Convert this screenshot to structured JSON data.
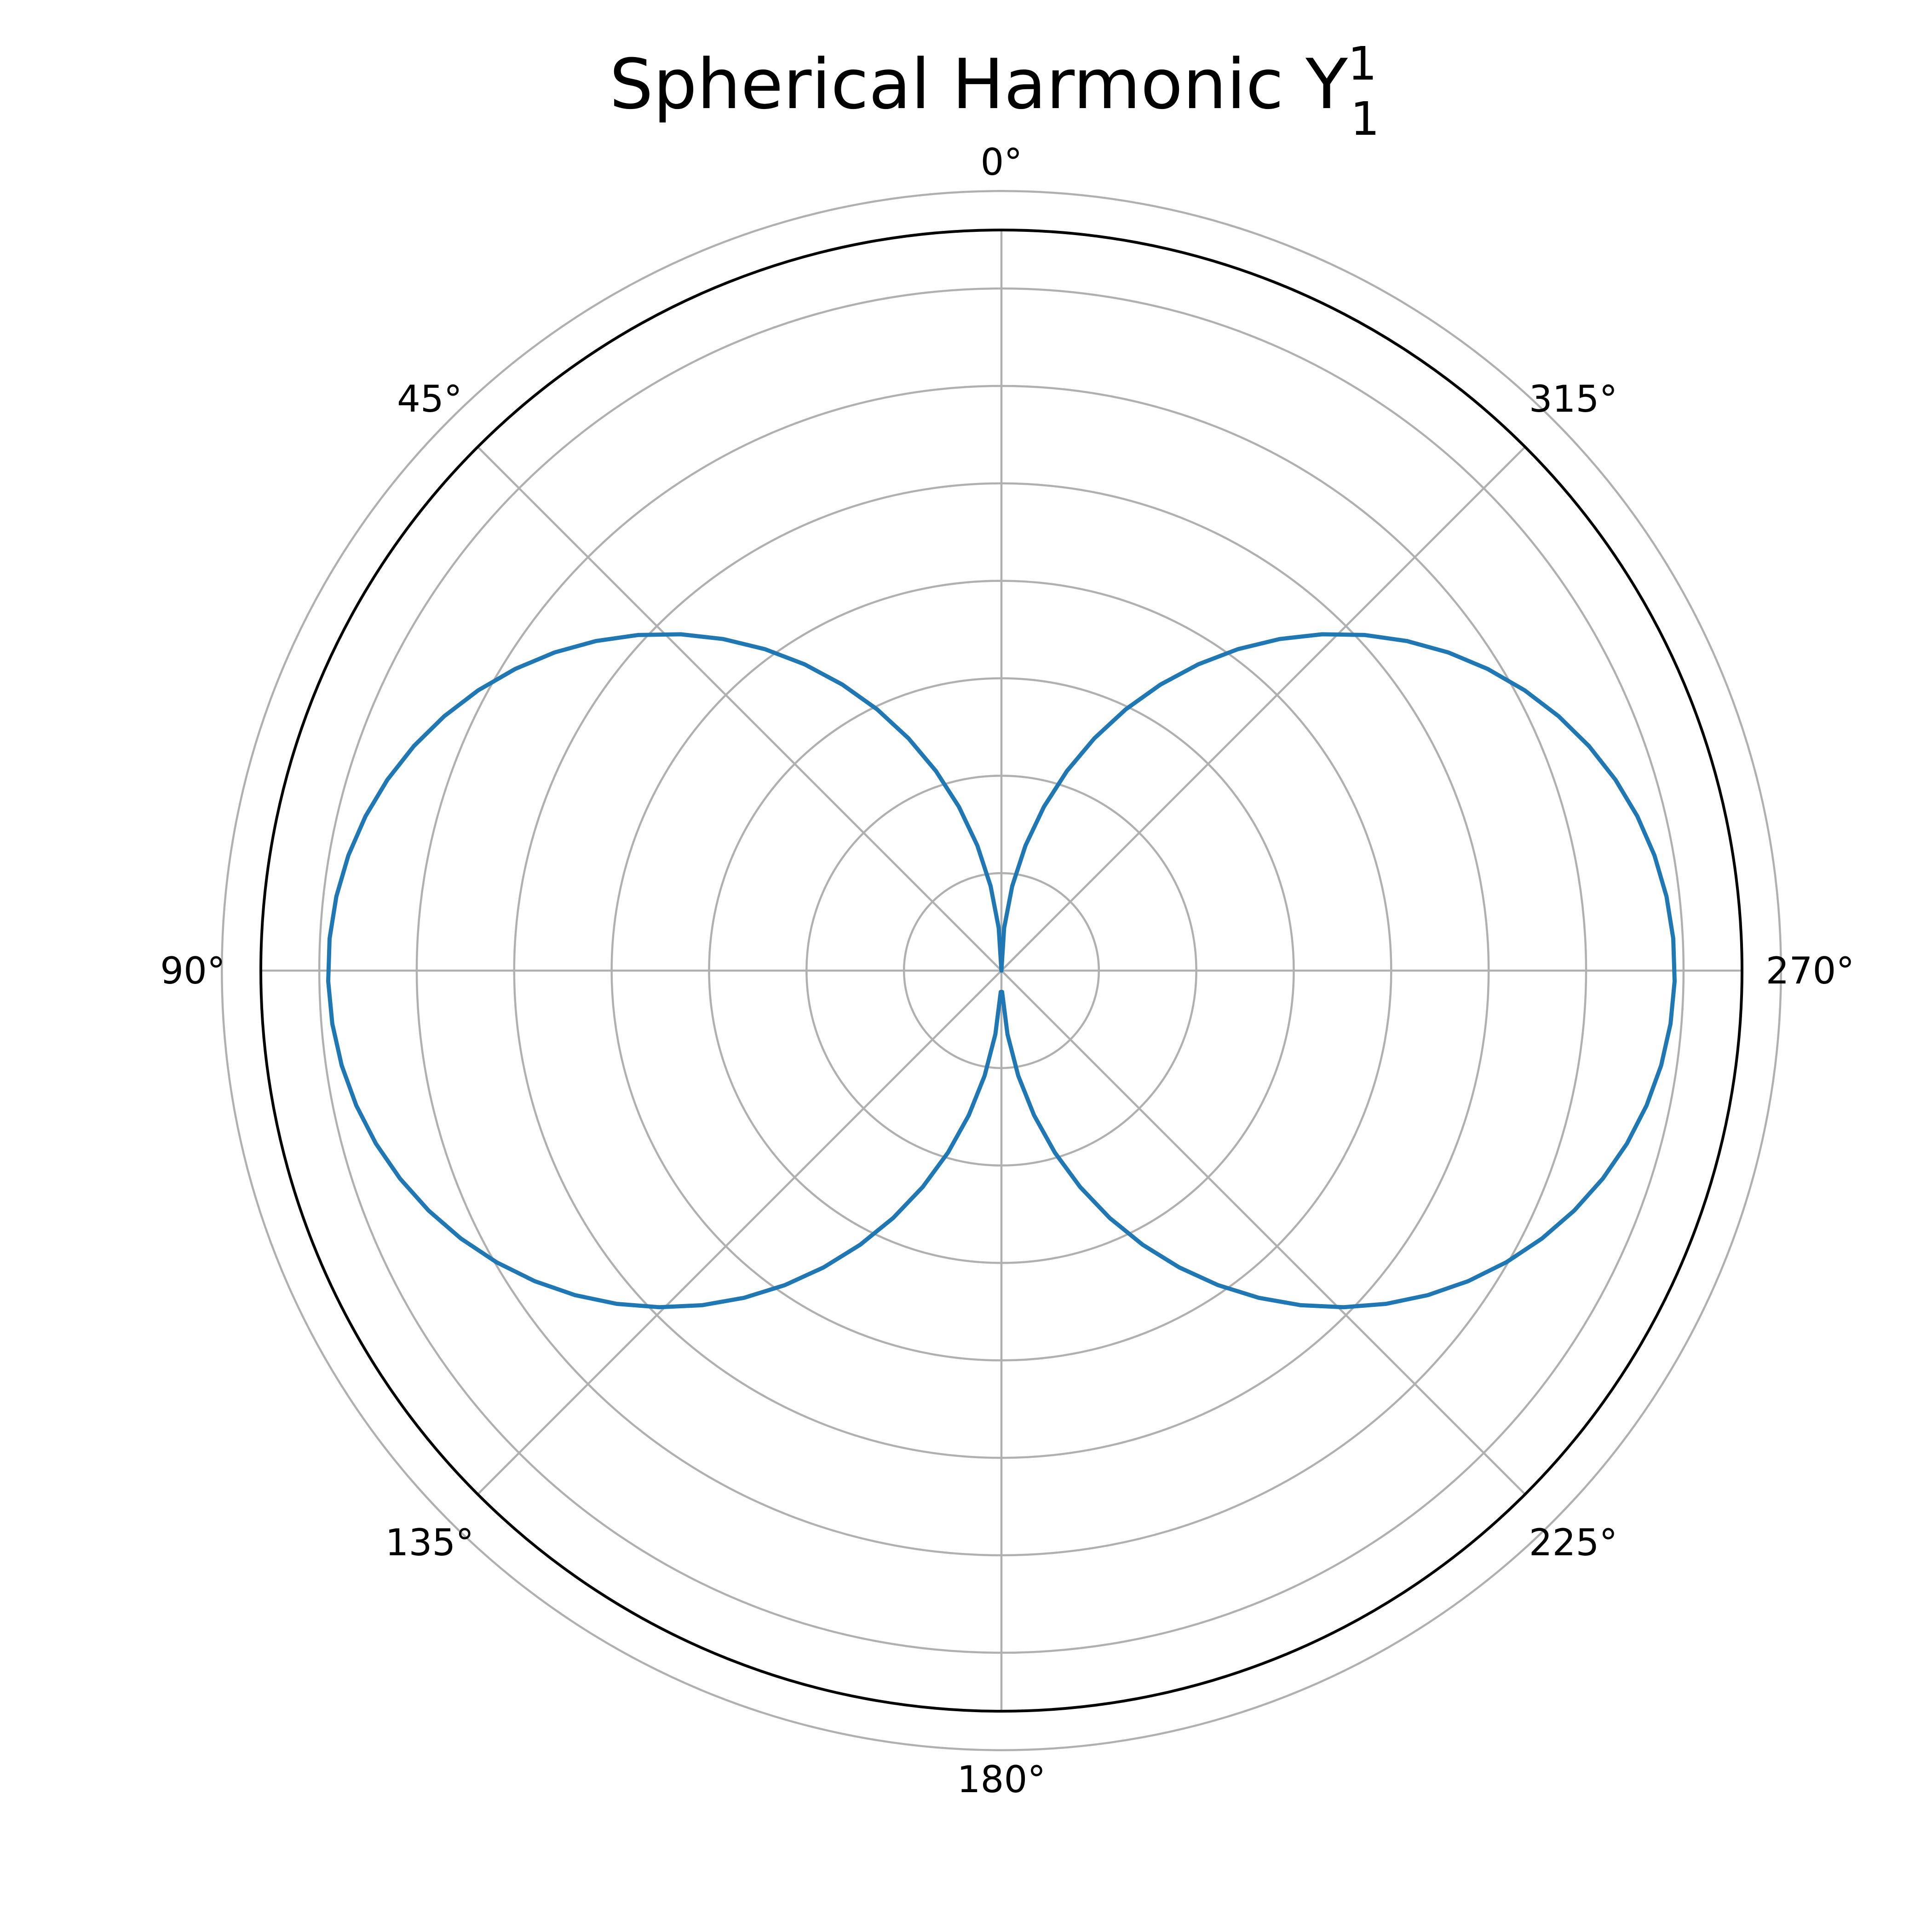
{
  "chart_data": {
    "type": "line",
    "projection": "polar",
    "title": {
      "main": "Spherical Harmonic Y",
      "superscript": "1",
      "subscript": "1"
    },
    "theta_zero_location": "top",
    "theta_direction": "counterclockwise",
    "theta_unit": "degrees",
    "theta_ticks": [
      {
        "angle": 0,
        "label": "0°"
      },
      {
        "angle": 45,
        "label": "45°"
      },
      {
        "angle": 90,
        "label": "90°"
      },
      {
        "angle": 135,
        "label": "135°"
      },
      {
        "angle": 180,
        "label": "180°"
      },
      {
        "angle": 225,
        "label": "225°"
      },
      {
        "angle": 270,
        "label": "270°"
      },
      {
        "angle": 315,
        "label": "315°"
      }
    ],
    "r_ticks": [
      0.05,
      0.1,
      0.15,
      0.2,
      0.25,
      0.3,
      0.35,
      0.4
    ],
    "r_tick_labels_visible": false,
    "rlim": [
      0,
      0.38
    ],
    "grid": true,
    "series": [
      {
        "formula": "r = |Y_1^1(theta)| = sqrt(3/(8*pi)) * |sin(theta)|",
        "amplitude": 0.3455,
        "theta_deg_start": 0,
        "theta_deg_end": 360,
        "samples": 100,
        "color": "#1f77b4"
      }
    ]
  }
}
